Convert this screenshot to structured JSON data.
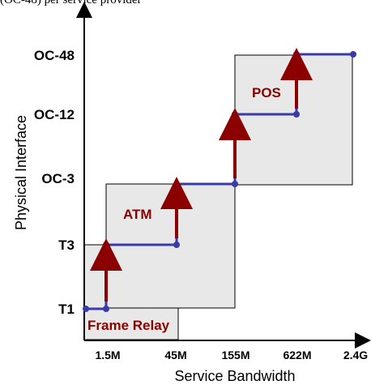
{
  "top_note": "(OC-48) per service provider",
  "diagram": {
    "y_axis_title": "Physical Interface",
    "x_axis_title": "Service Bandwidth",
    "y_levels": [
      "T1",
      "T3",
      "OC-3",
      "OC-12",
      "OC-48"
    ],
    "x_levels": [
      "1.5M",
      "45M",
      "155M",
      "622M",
      "2.4G"
    ],
    "regions": [
      {
        "label": "Frame Relay"
      },
      {
        "label": "ATM"
      },
      {
        "label": "POS"
      }
    ],
    "colors": {
      "step_line": "#3a3aa6",
      "arrow": "#8b0000",
      "region_fill": "#e8e8e8",
      "region_text": "#8b0000",
      "axis": "#000000"
    }
  }
}
